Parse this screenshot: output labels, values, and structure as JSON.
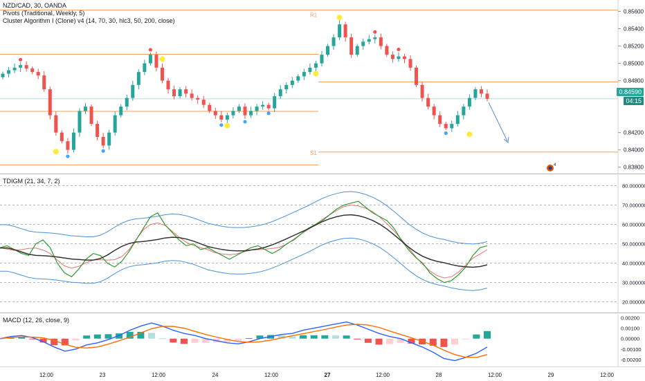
{
  "main": {
    "symbol": "NZD/CAD, 30, OANDA",
    "indicators": [
      "Pivots (Traditional, Weekly, 5)",
      "Cluster Algorithm I (Clone) v4 (14, 70, 30, hlc3, 50, 200, close)"
    ],
    "pivot_labels": {
      "r1": "R1",
      "s1": "S1"
    },
    "axis_labels": [
      "0.85600",
      "0.85400",
      "0.85200",
      "0.85000",
      "0.84800",
      "0.84200",
      "0.84000",
      "0.83800"
    ],
    "current_price": "0.84590",
    "countdown": "04:15",
    "badge_count": "4"
  },
  "tdi": {
    "legend": "TDIGM (21, 34, 7, 2)",
    "axis_labels": [
      "80.000000",
      "70.000000",
      "60.000000",
      "50.000000",
      "40.000000",
      "30.000000",
      "20.000000"
    ]
  },
  "macd": {
    "legend": "MACD (12, 26, close, 9)",
    "axis_labels": [
      "0.00200",
      "0.00100",
      "0.00000",
      "-0.00100",
      "-0.00200"
    ]
  },
  "time_axis": [
    "12:00",
    "23",
    "12:00",
    "24",
    "12:00",
    "27",
    "12:00",
    "28",
    "12:00",
    "29",
    "12:00"
  ],
  "colors": {
    "up": "#26a69a",
    "down": "#ef5350",
    "pivot": "#f0a060",
    "blue_band": "#4a90d9",
    "green_line": "#2e9a2e",
    "red_line": "#e57373",
    "macd_line": "#2962ff",
    "signal_line": "#ff6d00"
  },
  "chart_data": [
    {
      "type": "candlestick",
      "title": "NZD/CAD, 30, OANDA",
      "ylim": [
        0.8375,
        0.857
      ],
      "pivot_levels": {
        "R1": 0.85615,
        "S1": 0.83975
      },
      "horizontal_levels": [
        0.85105,
        0.84785,
        0.84445,
        0.83825
      ],
      "close_series": [
        0.8488,
        0.8492,
        0.8495,
        0.8498,
        0.8494,
        0.849,
        0.8486,
        0.847,
        0.844,
        0.842,
        0.841,
        0.84,
        0.842,
        0.8445,
        0.845,
        0.843,
        0.8415,
        0.8405,
        0.842,
        0.844,
        0.845,
        0.846,
        0.8475,
        0.849,
        0.85,
        0.851,
        0.8495,
        0.848,
        0.847,
        0.8462,
        0.847,
        0.8465,
        0.846,
        0.8458,
        0.8452,
        0.8445,
        0.844,
        0.8435,
        0.844,
        0.8445,
        0.845,
        0.844,
        0.8445,
        0.845,
        0.8452,
        0.8448,
        0.8462,
        0.847,
        0.8475,
        0.848,
        0.8485,
        0.849,
        0.8495,
        0.85,
        0.851,
        0.852,
        0.853,
        0.8545,
        0.853,
        0.851,
        0.852,
        0.8525,
        0.8528,
        0.853,
        0.852,
        0.851,
        0.8505,
        0.8508,
        0.8505,
        0.8495,
        0.8475,
        0.846,
        0.845,
        0.844,
        0.843,
        0.8425,
        0.843,
        0.844,
        0.845,
        0.846,
        0.847,
        0.8465,
        0.8459
      ],
      "series": [
        {
          "name": "TDIGM",
          "values": [
            48,
            49,
            47,
            45,
            44,
            50,
            52,
            48,
            40,
            35,
            33,
            37,
            42,
            45,
            44,
            40,
            38,
            41,
            46,
            52,
            58,
            64,
            66,
            60,
            56,
            52,
            49,
            50,
            47,
            48,
            46,
            44,
            42,
            44,
            46,
            48,
            49,
            47,
            45,
            47,
            50,
            52,
            55,
            58,
            60,
            62,
            65,
            68,
            70,
            71,
            72,
            69,
            66,
            64,
            62,
            58,
            52,
            47,
            43,
            40,
            35,
            32,
            30,
            31,
            34,
            38,
            44,
            48,
            49
          ]
        },
        {
          "name": "MACD",
          "values": [
            0.0,
            0.0002,
            0.0003,
            0.0001,
            -0.0003,
            -0.0008,
            -0.0012,
            -0.001,
            -0.0006,
            -0.0004,
            -0.0001,
            0.0003,
            0.0008,
            0.0012,
            0.0015,
            0.0012,
            0.0008,
            0.0005,
            0.0003,
            0.0,
            -0.0002,
            -0.0004,
            -0.0005,
            -0.0003,
            0.0,
            0.0002,
            0.0004,
            0.0005,
            0.0008,
            0.001,
            0.0012,
            0.0014,
            0.0016,
            0.0013,
            0.0009,
            0.0005,
            0.0002,
            0.0,
            -0.0004,
            -0.0008,
            -0.0013,
            -0.0019,
            -0.0021,
            -0.0018,
            -0.0014,
            -0.0008
          ]
        }
      ]
    }
  ]
}
